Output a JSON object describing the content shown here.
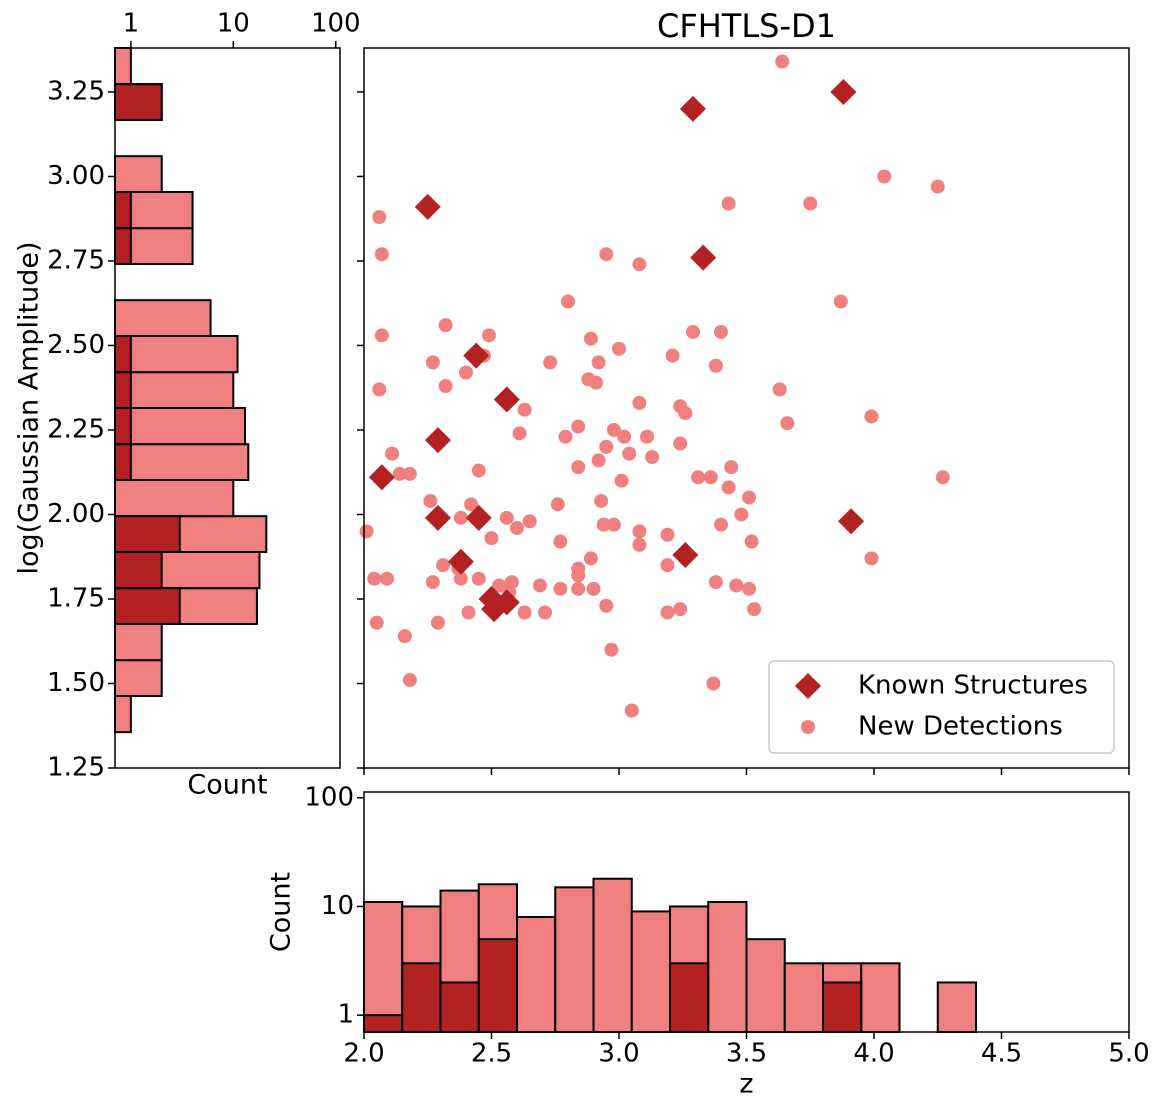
{
  "chart_data": [
    {
      "type": "scatter",
      "title": "CFHTLS-D1",
      "xlim": [
        2.0,
        5.0
      ],
      "xticks": [
        2.0,
        2.5,
        3.0,
        3.5,
        4.0,
        4.5,
        5.0
      ],
      "ylim": [
        1.25,
        3.38
      ],
      "yticks": [
        1.25,
        1.5,
        1.75,
        2.0,
        2.25,
        2.5,
        2.75,
        3.0,
        3.25
      ],
      "legend": "lower right",
      "series": [
        {
          "name": "Known Structures",
          "color": "#b22222",
          "marker": "diamond",
          "x": [
            2.07,
            2.25,
            2.29,
            2.29,
            2.38,
            2.44,
            2.45,
            2.5,
            2.51,
            2.56,
            2.56,
            3.26,
            3.29,
            3.33,
            3.88,
            3.91
          ],
          "y": [
            2.11,
            2.91,
            2.22,
            1.99,
            1.86,
            2.47,
            1.99,
            1.75,
            1.72,
            1.74,
            2.34,
            1.88,
            3.2,
            2.76,
            3.25,
            1.98
          ]
        },
        {
          "name": "New Detections",
          "color": "#f08080",
          "marker": "circle",
          "x": [
            3.64,
            4.04,
            4.25,
            3.43,
            3.75,
            2.06,
            2.07,
            2.95,
            3.08,
            2.8,
            3.87,
            2.07,
            2.32,
            2.49,
            3.29,
            3.4,
            2.89,
            3.0,
            2.06,
            2.27,
            2.4,
            2.32,
            2.47,
            2.73,
            3.21,
            3.38,
            2.92,
            2.88,
            2.91,
            3.63,
            2.56,
            2.63,
            3.08,
            3.24,
            3.26,
            3.99,
            3.66,
            2.84,
            2.98,
            2.61,
            2.79,
            2.95,
            3.02,
            3.11,
            3.24,
            2.11,
            3.04,
            3.13,
            2.14,
            2.18,
            2.45,
            2.84,
            2.92,
            3.44,
            3.31,
            3.36,
            3.43,
            3.01,
            3.51,
            2.93,
            2.76,
            2.26,
            2.42,
            2.01,
            2.38,
            2.56,
            2.65,
            2.6,
            3.48,
            3.4,
            2.94,
            2.98,
            3.08,
            3.19,
            2.5,
            2.77,
            3.08,
            3.52,
            2.89,
            2.31,
            2.37,
            3.19,
            2.84,
            2.84,
            2.04,
            2.09,
            2.27,
            2.38,
            2.45,
            2.53,
            2.58,
            2.57,
            2.69,
            2.77,
            2.84,
            2.9,
            3.38,
            3.46,
            3.51,
            2.41,
            2.63,
            2.71,
            2.95,
            3.19,
            3.24,
            3.53,
            2.05,
            2.29,
            2.16,
            2.97,
            2.18,
            3.37,
            3.05,
            3.99,
            4.27
          ],
          "y": [
            3.34,
            3.0,
            2.97,
            2.92,
            2.92,
            2.88,
            2.77,
            2.77,
            2.74,
            2.63,
            2.63,
            2.53,
            2.56,
            2.53,
            2.54,
            2.54,
            2.52,
            2.49,
            2.37,
            2.45,
            2.42,
            2.38,
            2.47,
            2.45,
            2.47,
            2.44,
            2.45,
            2.4,
            2.39,
            2.37,
            2.34,
            2.31,
            2.33,
            2.32,
            2.3,
            2.29,
            2.27,
            2.26,
            2.25,
            2.24,
            2.23,
            2.2,
            2.23,
            2.23,
            2.21,
            2.18,
            2.18,
            2.17,
            2.12,
            2.12,
            2.13,
            2.14,
            2.16,
            2.14,
            2.11,
            2.11,
            2.08,
            2.1,
            2.05,
            2.04,
            2.03,
            2.04,
            2.03,
            1.95,
            1.99,
            1.99,
            1.98,
            1.96,
            2.0,
            1.97,
            1.97,
            1.97,
            1.95,
            1.94,
            1.93,
            1.92,
            1.91,
            1.92,
            1.87,
            1.85,
            1.84,
            1.85,
            1.84,
            1.82,
            1.81,
            1.81,
            1.8,
            1.81,
            1.81,
            1.79,
            1.8,
            1.77,
            1.79,
            1.78,
            1.78,
            1.78,
            1.8,
            1.79,
            1.78,
            1.71,
            1.71,
            1.71,
            1.73,
            1.71,
            1.72,
            1.72,
            1.68,
            1.68,
            1.64,
            1.6,
            1.51,
            1.5,
            1.42,
            1.87,
            2.11
          ]
        }
      ]
    },
    {
      "type": "histogram",
      "orientation": "horizontal",
      "xlabel": "Count",
      "ylabel": "log(Gaussian Amplitude)",
      "xscale": "log",
      "xlim": [
        0.7,
        110
      ],
      "xticks": [
        1,
        10,
        100
      ],
      "ylim": [
        1.25,
        3.38
      ],
      "yticks": [
        1.25,
        {
          "value": 1.5,
          "label": "1.50"
        },
        1.75,
        {
          "value": 2.0,
          "label": "2.00"
        },
        2.25,
        {
          "value": 2.5,
          "label": "2.50"
        },
        2.75,
        {
          "value": 3.0,
          "label": "3.00"
        },
        3.25
      ],
      "bins": [
        1.356,
        1.463,
        1.569,
        1.676,
        1.782,
        1.889,
        1.995,
        2.102,
        2.208,
        2.315,
        2.421,
        2.528,
        2.634,
        2.741,
        2.847,
        2.954,
        3.06,
        3.167,
        3.273,
        3.38
      ],
      "series": [
        {
          "color": "#f08080",
          "values": [
            1,
            2,
            2,
            17,
            18,
            21,
            10,
            14,
            13,
            10,
            11,
            6,
            0,
            4,
            4,
            2,
            0,
            2,
            1
          ]
        },
        {
          "color": "#b22222",
          "values": [
            0,
            0,
            0,
            3,
            2,
            3,
            0,
            1,
            1,
            1,
            1,
            0,
            0,
            1,
            1,
            0,
            0,
            2,
            0
          ]
        }
      ]
    },
    {
      "type": "histogram",
      "orientation": "vertical",
      "xlabel": "z",
      "ylabel": "Count",
      "xlim": [
        2.0,
        5.0
      ],
      "xticks": [
        {
          "value": 2.0,
          "label": "2.0"
        },
        2.5,
        {
          "value": 3.0,
          "label": "3.0"
        },
        3.5,
        {
          "value": 4.0,
          "label": "4.0"
        },
        4.5,
        {
          "value": 5.0,
          "label": "5.0"
        }
      ],
      "yscale": "log",
      "ylim": [
        0.7,
        113
      ],
      "yticks": [
        1,
        10,
        100
      ],
      "bins": [
        2.0,
        2.15,
        2.3,
        2.45,
        2.6,
        2.75,
        2.9,
        3.05,
        3.2,
        3.35,
        3.5,
        3.65,
        3.8,
        3.95,
        4.1,
        4.25,
        4.4
      ],
      "series": [
        {
          "color": "#f08080",
          "values": [
            11,
            10,
            14,
            16,
            8,
            15,
            18,
            9,
            10,
            11,
            5,
            3,
            3,
            3,
            0,
            2
          ]
        },
        {
          "color": "#b22222",
          "values": [
            1,
            3,
            2,
            5,
            0,
            0,
            0,
            0,
            3,
            0,
            0,
            0,
            2,
            0,
            0,
            0
          ]
        }
      ]
    }
  ]
}
